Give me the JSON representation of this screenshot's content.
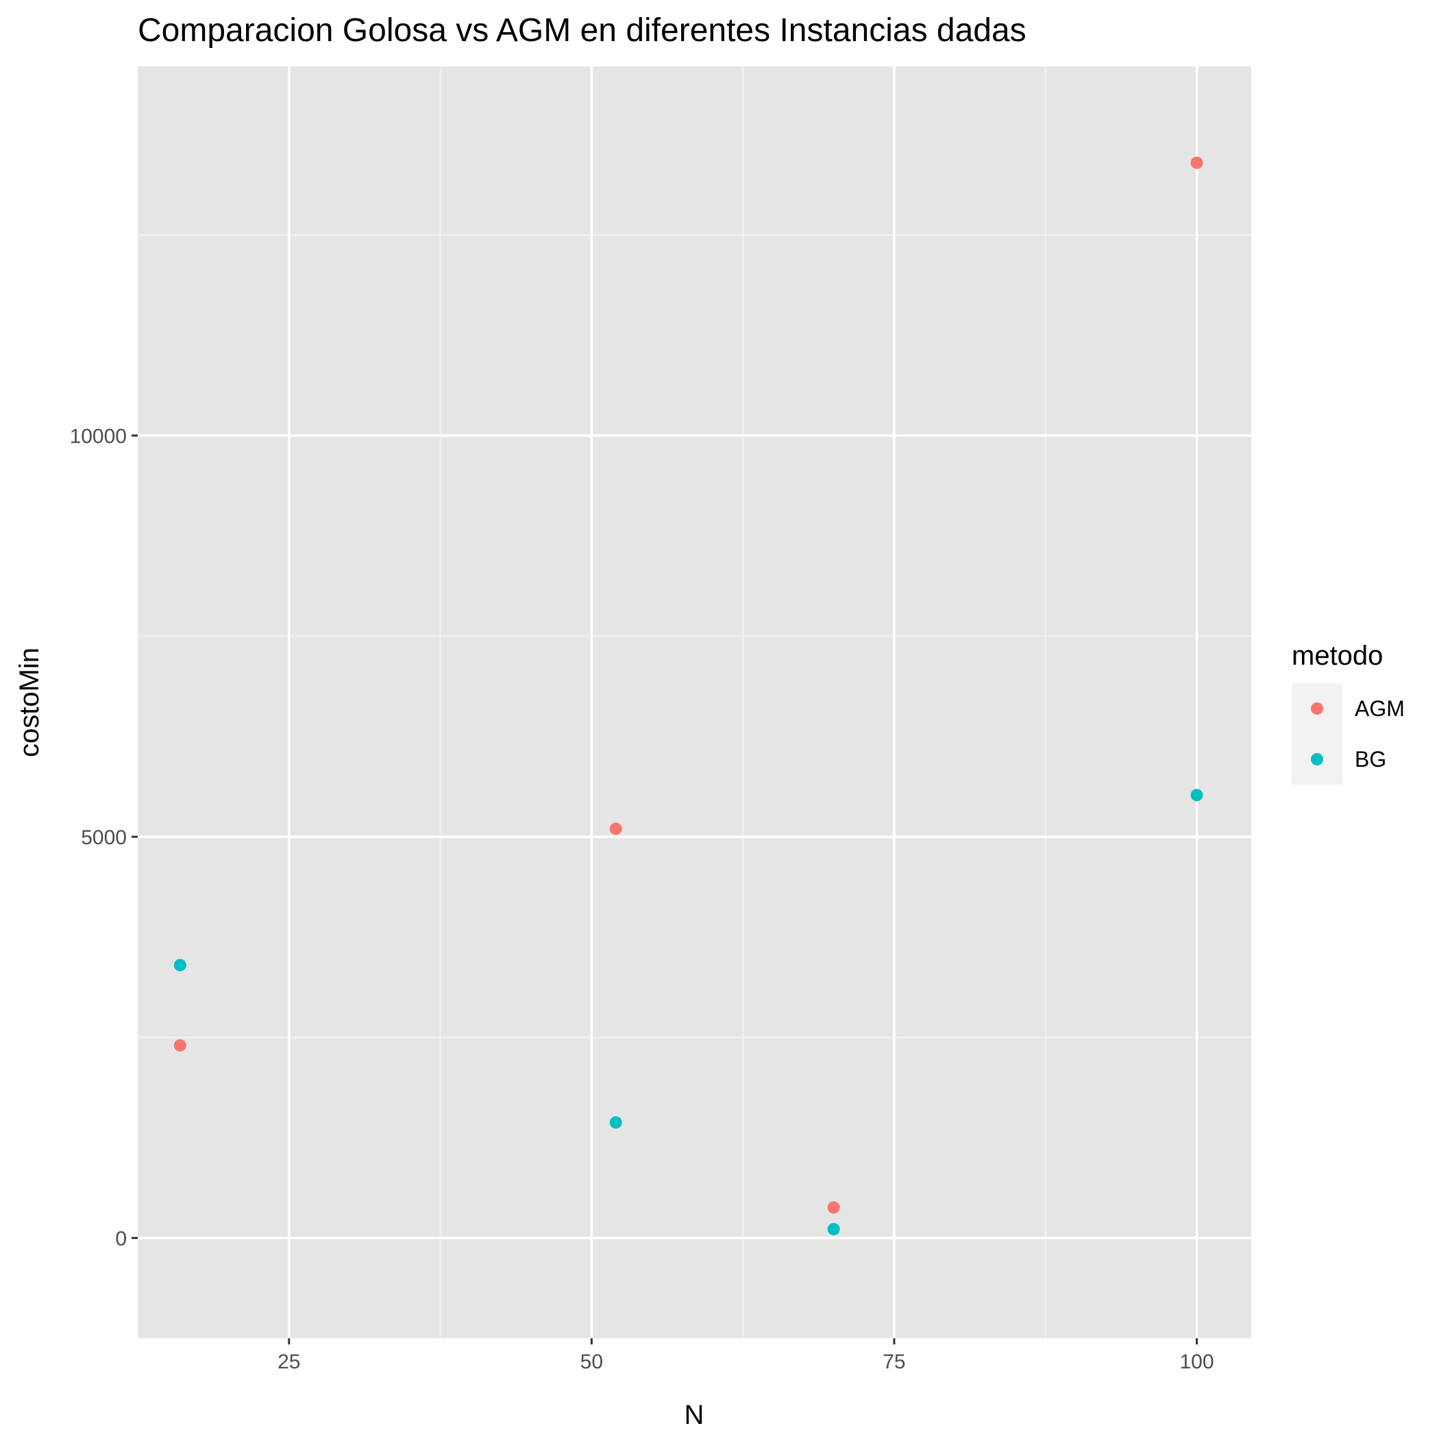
{
  "chart_data": {
    "type": "scatter",
    "title": "Comparacion Golosa vs AGM en  diferentes Instancias dadas",
    "xlabel": "N",
    "ylabel": "costoMin",
    "xlim": [
      12.5,
      104.5
    ],
    "ylim": [
      -1250,
      14600
    ],
    "x_ticks": [
      25,
      50,
      75,
      100
    ],
    "y_ticks": [
      0,
      5000,
      10000
    ],
    "x_tick_labels": [
      "25",
      "50",
      "75",
      "100"
    ],
    "y_tick_labels": [
      "0",
      "5000",
      "10000"
    ],
    "grid": true,
    "legend": {
      "title": "metodo",
      "placement": "right"
    },
    "series": [
      {
        "name": "AGM",
        "color": "#F8766D",
        "x": [
          16,
          52,
          70,
          100
        ],
        "y": [
          2400,
          5100,
          380,
          13400
        ]
      },
      {
        "name": "BG",
        "color": "#00BFC4",
        "x": [
          16,
          52,
          70,
          100
        ],
        "y": [
          3400,
          1440,
          110,
          5520
        ]
      }
    ]
  },
  "colors": {
    "panel_background": "#E5E5E5",
    "grid_major": "#FFFFFF",
    "grid_minor": "#F2F2F2",
    "legend_key_background": "#F2F2F2"
  }
}
